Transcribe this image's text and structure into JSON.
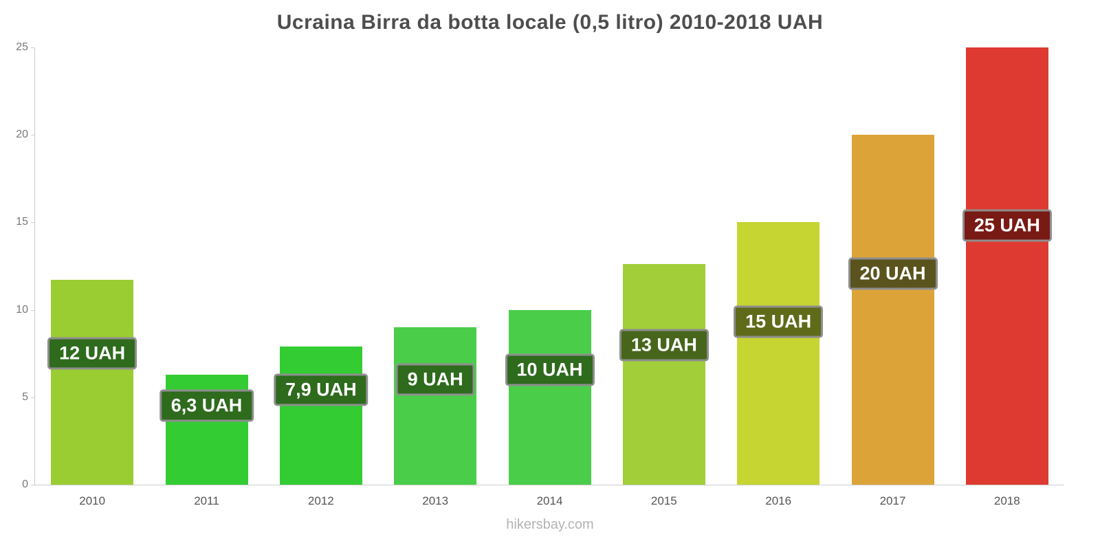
{
  "title": "Ucraina Birra da botta locale (0,5 litro) 2010-2018 UAH",
  "footer": "hikersbay.com",
  "chart_data": {
    "type": "bar",
    "title": "Ucraina Birra da botta locale (0,5 litro) 2010-2018 UAH",
    "categories": [
      "2010",
      "2011",
      "2012",
      "2013",
      "2014",
      "2015",
      "2016",
      "2017",
      "2018"
    ],
    "values": [
      12,
      6.3,
      7.9,
      9,
      10,
      13,
      15,
      20,
      25
    ],
    "bar_values": [
      11.7,
      6.3,
      7.9,
      9,
      10,
      12.6,
      15,
      20,
      25
    ],
    "labels": [
      "12 UAH",
      "6,3 UAH",
      "7,9 UAH",
      "9 UAH",
      "10 UAH",
      "13 UAH",
      "15 UAH",
      "20 UAH",
      "25 UAH"
    ],
    "bar_colors": [
      "#9acd32",
      "#33cc33",
      "#33cc33",
      "#4ace4a",
      "#4ace4a",
      "#a2ce39",
      "#c6d532",
      "#dca438",
      "#de3a31"
    ],
    "label_bg_colors": [
      "#2e6b1d",
      "#2e6b1d",
      "#2e6b1d",
      "#2e6b1d",
      "#2e6b1d",
      "#47661b",
      "#5f6b19",
      "#5a531d",
      "#791a14"
    ],
    "label_border_color": "#8e8e8e",
    "xlabel": "",
    "ylabel": "",
    "ylim": [
      0,
      25
    ],
    "yticks": [
      0,
      5,
      10,
      15,
      20,
      25
    ],
    "grid": false,
    "legend": false,
    "currency": "UAH"
  }
}
